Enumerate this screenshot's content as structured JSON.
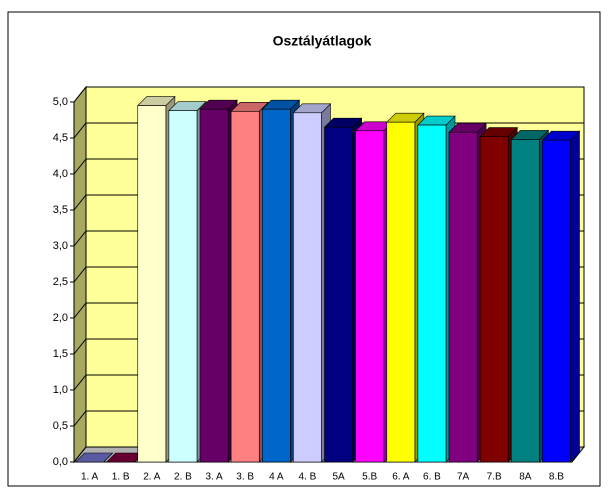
{
  "chart_data": {
    "type": "bar3d",
    "title": "Osztályátlagok",
    "categories": [
      "1. A",
      "1. B",
      "2. A",
      "2. B",
      "3. A",
      "3. B",
      "4 A",
      "4. B",
      "5A",
      "5.B",
      "6. A",
      "6. B",
      "7A",
      "7.B",
      "8A",
      "8.B"
    ],
    "values": [
      0,
      0,
      4.95,
      4.88,
      4.9,
      4.87,
      4.9,
      4.85,
      4.65,
      4.6,
      4.72,
      4.68,
      4.58,
      4.52,
      4.48,
      4.47
    ],
    "colors": [
      "#7070c8",
      "#800040",
      "#ffffcc",
      "#ccffff",
      "#660066",
      "#ff8080",
      "#0066cc",
      "#ccccff",
      "#000080",
      "#ff00ff",
      "#ffff00",
      "#00ffff",
      "#800080",
      "#800000",
      "#008080",
      "#0000ff"
    ],
    "ylim": [
      0,
      5
    ],
    "yticks": [
      {
        "value": 0,
        "label": "0,0"
      },
      {
        "value": 0.5,
        "label": "0,5"
      },
      {
        "value": 1,
        "label": "1,0"
      },
      {
        "value": 1.5,
        "label": "1,5"
      },
      {
        "value": 2,
        "label": "2,0"
      },
      {
        "value": 2.5,
        "label": "2,5"
      },
      {
        "value": 3,
        "label": "3,0"
      },
      {
        "value": 3.5,
        "label": "3,5"
      },
      {
        "value": 4,
        "label": "4,0"
      },
      {
        "value": 4.5,
        "label": "4,5"
      },
      {
        "value": 5,
        "label": "5,0"
      }
    ],
    "grid": true
  }
}
